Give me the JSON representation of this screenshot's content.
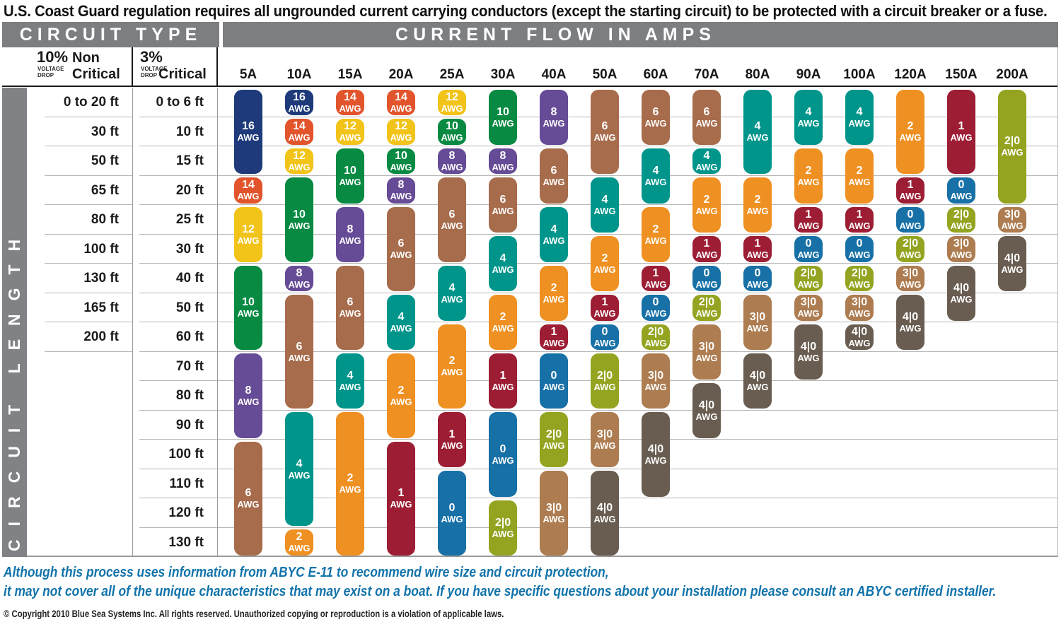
{
  "title": "U.S. Coast Guard regulation requires all ungrounded current carrying conductors (except the starting circuit) to be protected with a circuit breaker or a fuse.",
  "header": {
    "circuit_type": "CIRCUIT TYPE",
    "current_flow": "CURRENT FLOW IN AMPS"
  },
  "subheader": {
    "non_critical": {
      "pct": "10%",
      "voltage": "VOLTAGE",
      "drop": "DROP",
      "line1": "Non",
      "line2": "Critical"
    },
    "critical": {
      "pct": "3%",
      "voltage": "VOLTAGE",
      "drop": "DROP",
      "line1": "Critical"
    }
  },
  "sidebar_label": "CIRCUIT LENGTH",
  "footer": {
    "note_line1": "Although this process uses information from  ABYC E-11 to recommend wire size and circuit protection,",
    "note_line2": "it may not cover all of the unique characteristics that may exist on a boat. If you have specific questions about your installation please consult an ABYC certified installer.",
    "copyright": "© Copyright 2010 Blue Sea Systems Inc. All rights reserved. Unauthorized copying or reproduction is a violation of applicable laws."
  },
  "chart_data": {
    "type": "table",
    "title": "CURRENT FLOW IN AMPS",
    "x_axis_label": "Current flow in amps",
    "y_axis_label": "Circuit length (ft)",
    "amps": [
      "5A",
      "10A",
      "15A",
      "20A",
      "25A",
      "30A",
      "40A",
      "50A",
      "60A",
      "70A",
      "80A",
      "90A",
      "100A",
      "120A",
      "150A",
      "200A"
    ],
    "circuit_length_10pct_non_critical": [
      "0 to 20 ft",
      "30 ft",
      "50 ft",
      "65 ft",
      "80 ft",
      "100 ft",
      "130 ft",
      "165 ft",
      "200 ft"
    ],
    "circuit_length_3pct_critical": [
      "0 to 6 ft",
      "10 ft",
      "15 ft",
      "20 ft",
      "25 ft",
      "30 ft",
      "40 ft",
      "50 ft",
      "60 ft",
      "70 ft",
      "80 ft",
      "90 ft",
      "100 ft",
      "110 ft",
      "120 ft",
      "130 ft"
    ],
    "awg_unit": "AWG",
    "awg_colors": {
      "16": "#1e3a7b",
      "14": "#e2552c",
      "12": "#f2c318",
      "10": "#088a43",
      "8": "#664b96",
      "6": "#a76c4c",
      "4": "#00958b",
      "2": "#ef9022",
      "1": "#9c1d34",
      "0": "#1770a6",
      "2|0": "#94a421",
      "3|0": "#ad7c50",
      "4|0": "#695d51"
    },
    "columns": [
      {
        "amp": "5A",
        "segments": [
          [
            "16",
            1,
            3
          ],
          [
            "14",
            4,
            4
          ],
          [
            "12",
            5,
            6
          ],
          [
            "10",
            7,
            9
          ],
          [
            "8",
            10,
            12
          ],
          [
            "6",
            13,
            16
          ]
        ]
      },
      {
        "amp": "10A",
        "segments": [
          [
            "16",
            1,
            1
          ],
          [
            "14",
            2,
            2
          ],
          [
            "12",
            3,
            3
          ],
          [
            "10",
            4,
            6
          ],
          [
            "8",
            7,
            7
          ],
          [
            "6",
            8,
            11
          ],
          [
            "4",
            12,
            15
          ],
          [
            "2",
            16,
            16
          ]
        ]
      },
      {
        "amp": "15A",
        "segments": [
          [
            "14",
            1,
            1
          ],
          [
            "12",
            2,
            2
          ],
          [
            "10",
            3,
            4
          ],
          [
            "8",
            5,
            6
          ],
          [
            "6",
            7,
            9
          ],
          [
            "4",
            10,
            11
          ],
          [
            "2",
            12,
            16
          ]
        ]
      },
      {
        "amp": "20A",
        "segments": [
          [
            "14",
            1,
            1
          ],
          [
            "12",
            2,
            2
          ],
          [
            "10",
            3,
            3
          ],
          [
            "8",
            4,
            4
          ],
          [
            "6",
            5,
            7
          ],
          [
            "4",
            8,
            9
          ],
          [
            "2",
            10,
            12
          ],
          [
            "1",
            13,
            16
          ]
        ]
      },
      {
        "amp": "25A",
        "segments": [
          [
            "12",
            1,
            1
          ],
          [
            "10",
            2,
            2
          ],
          [
            "8",
            3,
            3
          ],
          [
            "6",
            4,
            6
          ],
          [
            "4",
            7,
            8
          ],
          [
            "2",
            9,
            11
          ],
          [
            "1",
            12,
            13
          ],
          [
            "0",
            14,
            16
          ]
        ]
      },
      {
        "amp": "30A",
        "segments": [
          [
            "10",
            1,
            2
          ],
          [
            "8",
            3,
            3
          ],
          [
            "6",
            4,
            5
          ],
          [
            "4",
            6,
            7
          ],
          [
            "2",
            8,
            9
          ],
          [
            "1",
            10,
            11
          ],
          [
            "0",
            12,
            14
          ],
          [
            "2|0",
            15,
            16
          ]
        ]
      },
      {
        "amp": "40A",
        "segments": [
          [
            "8",
            1,
            2
          ],
          [
            "6",
            3,
            4
          ],
          [
            "4",
            5,
            6
          ],
          [
            "2",
            7,
            8
          ],
          [
            "1",
            9,
            9
          ],
          [
            "0",
            10,
            11
          ],
          [
            "2|0",
            12,
            13
          ],
          [
            "3|0",
            14,
            16
          ]
        ]
      },
      {
        "amp": "50A",
        "segments": [
          [
            "6",
            1,
            3
          ],
          [
            "4",
            4,
            5
          ],
          [
            "2",
            6,
            7
          ],
          [
            "1",
            8,
            8
          ],
          [
            "0",
            9,
            9
          ],
          [
            "2|0",
            10,
            11
          ],
          [
            "3|0",
            12,
            13
          ],
          [
            "4|0",
            14,
            16
          ]
        ]
      },
      {
        "amp": "60A",
        "segments": [
          [
            "6",
            1,
            2
          ],
          [
            "4",
            3,
            4
          ],
          [
            "2",
            5,
            6
          ],
          [
            "1",
            7,
            7
          ],
          [
            "0",
            8,
            8
          ],
          [
            "2|0",
            9,
            9
          ],
          [
            "3|0",
            10,
            11
          ],
          [
            "4|0",
            12,
            14
          ]
        ]
      },
      {
        "amp": "70A",
        "segments": [
          [
            "6",
            1,
            2
          ],
          [
            "4",
            3,
            3
          ],
          [
            "2",
            4,
            5
          ],
          [
            "1",
            6,
            6
          ],
          [
            "0",
            7,
            7
          ],
          [
            "2|0",
            8,
            8
          ],
          [
            "3|0",
            9,
            10
          ],
          [
            "4|0",
            11,
            12
          ]
        ]
      },
      {
        "amp": "80A",
        "segments": [
          [
            "4",
            1,
            3
          ],
          [
            "2",
            4,
            5
          ],
          [
            "1",
            6,
            6
          ],
          [
            "0",
            7,
            7
          ],
          [
            "3|0",
            8,
            9
          ],
          [
            "4|0",
            10,
            11
          ]
        ]
      },
      {
        "amp": "90A",
        "segments": [
          [
            "4",
            1,
            2
          ],
          [
            "2",
            3,
            4
          ],
          [
            "1",
            5,
            5
          ],
          [
            "0",
            6,
            6
          ],
          [
            "2|0",
            7,
            7
          ],
          [
            "3|0",
            8,
            8
          ],
          [
            "4|0",
            9,
            10
          ]
        ]
      },
      {
        "amp": "100A",
        "segments": [
          [
            "4",
            1,
            2
          ],
          [
            "2",
            3,
            4
          ],
          [
            "1",
            5,
            5
          ],
          [
            "0",
            6,
            6
          ],
          [
            "2|0",
            7,
            7
          ],
          [
            "3|0",
            8,
            8
          ],
          [
            "4|0",
            9,
            9
          ]
        ]
      },
      {
        "amp": "120A",
        "segments": [
          [
            "2",
            1,
            3
          ],
          [
            "1",
            4,
            4
          ],
          [
            "0",
            5,
            5
          ],
          [
            "2|0",
            6,
            6
          ],
          [
            "3|0",
            7,
            7
          ],
          [
            "4|0",
            8,
            9
          ]
        ]
      },
      {
        "amp": "150A",
        "segments": [
          [
            "1",
            1,
            3
          ],
          [
            "0",
            4,
            4
          ],
          [
            "2|0",
            5,
            5
          ],
          [
            "3|0",
            6,
            6
          ],
          [
            "4|0",
            7,
            8
          ]
        ]
      },
      {
        "amp": "200A",
        "segments": [
          [
            "2|0",
            1,
            4
          ],
          [
            "3|0",
            5,
            5
          ],
          [
            "4|0",
            6,
            7
          ]
        ]
      }
    ]
  }
}
